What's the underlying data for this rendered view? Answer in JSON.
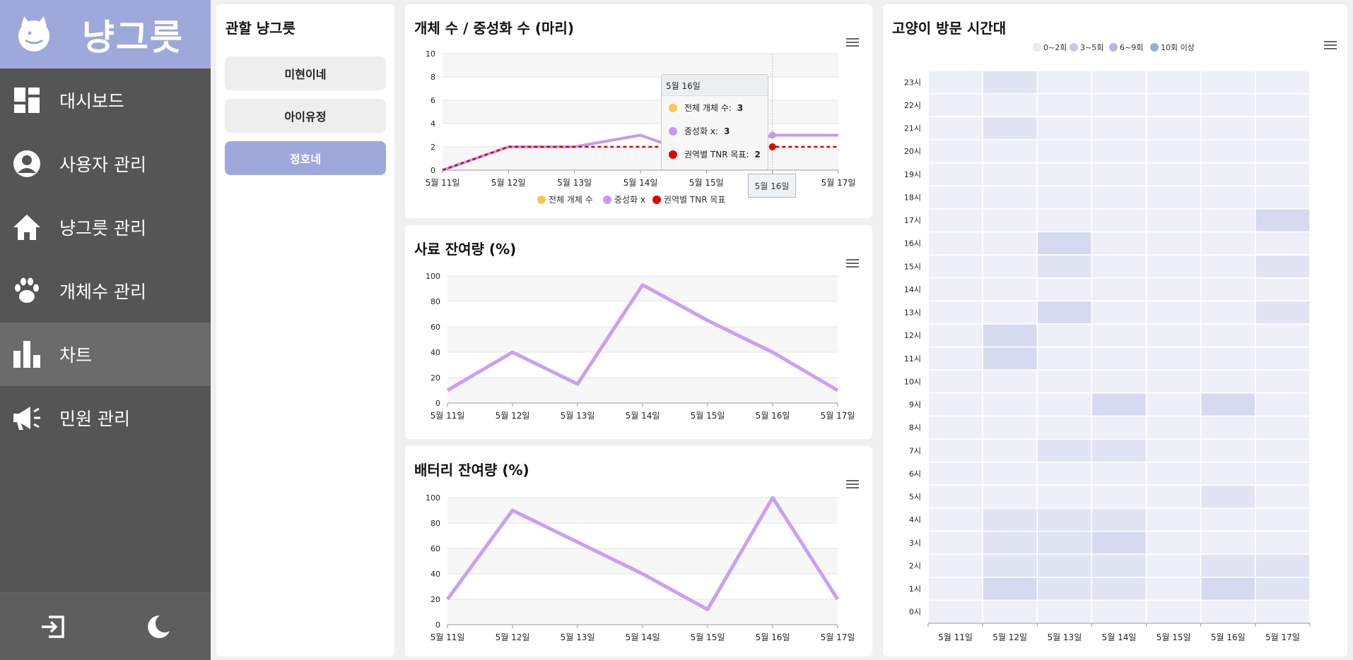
{
  "app": {
    "name": "냥그릇"
  },
  "sidebar": {
    "items": [
      {
        "label": "대시보드",
        "icon": "dashboard-icon"
      },
      {
        "label": "사용자 관리",
        "icon": "user-icon"
      },
      {
        "label": "냥그릇 관리",
        "icon": "home-icon"
      },
      {
        "label": "개체수 관리",
        "icon": "paw-icon"
      },
      {
        "label": "차트",
        "icon": "bar-chart-icon"
      },
      {
        "label": "민원 관리",
        "icon": "megaphone-icon"
      }
    ],
    "active_index": 4,
    "bottom": {
      "logout_icon": "logout-icon",
      "theme_icon": "moon-icon"
    }
  },
  "groups_panel": {
    "title": "관할 냥그릇",
    "items": [
      "미현이네",
      "아이유정",
      "정호네"
    ],
    "active_index": 2
  },
  "colors": {
    "brand": "#9fa8da",
    "sidebar_bg": "#555555",
    "series_total": "#f9c74f",
    "series_neutered": "#c49af0",
    "series_tnr": "#e00000",
    "line_purple": "#c9a0f5"
  },
  "chart_data": [
    {
      "type": "line",
      "title": "개체 수 / 중성화 수 (마리)",
      "categories": [
        "5월 11일",
        "5월 12일",
        "5월 13일",
        "5월 14일",
        "5월 15일",
        "5월 16일",
        "5월 17일"
      ],
      "series": [
        {
          "name": "전체 개체 수",
          "values": [
            0,
            2,
            2,
            3,
            1,
            3,
            3
          ]
        },
        {
          "name": "중성화 x",
          "values": [
            0,
            2,
            2,
            3,
            1,
            3,
            3
          ]
        },
        {
          "name": "권역별 TNR 목표",
          "values": [
            0,
            2,
            2,
            2,
            2,
            2,
            2
          ]
        }
      ],
      "ylim": [
        0,
        10
      ],
      "yticks": [
        0,
        2,
        4,
        6,
        8,
        10
      ],
      "legend": "bottom",
      "tooltip": {
        "title": "5월 16일",
        "rows": [
          {
            "label": "전체 개체 수:",
            "value": "3"
          },
          {
            "label": "중성화 x:",
            "value": "3"
          },
          {
            "label": "권역별 TNR 목표:",
            "value": "2"
          }
        ]
      }
    },
    {
      "type": "line",
      "title": "사료 잔여량 (%)",
      "categories": [
        "5월 11일",
        "5월 12일",
        "5월 13일",
        "5월 14일",
        "5월 15일",
        "5월 16일",
        "5월 17일"
      ],
      "values": [
        10,
        40,
        15,
        93,
        65,
        40,
        10
      ],
      "ylim": [
        0,
        100
      ],
      "yticks": [
        0,
        20,
        40,
        60,
        80,
        100
      ]
    },
    {
      "type": "line",
      "title": "배터리 잔여량 (%)",
      "categories": [
        "5월 11일",
        "5월 12일",
        "5월 13일",
        "5월 14일",
        "5월 15일",
        "5월 16일",
        "5월 17일"
      ],
      "values": [
        20,
        90,
        65,
        40,
        12,
        100,
        20
      ],
      "ylim": [
        0,
        100
      ],
      "yticks": [
        0,
        20,
        40,
        60,
        80,
        100
      ]
    },
    {
      "type": "heatmap",
      "title": "고양이 방문 시간대",
      "x": [
        "5월 11일",
        "5월 12일",
        "5월 13일",
        "5월 14일",
        "5월 15일",
        "5월 16일",
        "5월 17일"
      ],
      "y": [
        "0시",
        "1시",
        "2시",
        "3시",
        "4시",
        "5시",
        "6시",
        "7시",
        "8시",
        "9시",
        "10시",
        "11시",
        "12시",
        "13시",
        "14시",
        "15시",
        "16시",
        "17시",
        "18시",
        "19시",
        "20시",
        "21시",
        "22시",
        "23시"
      ],
      "legend": [
        "0~2회",
        "3~5회",
        "6~9회",
        "10회 이상"
      ],
      "legend_colors": [
        "#e8eaf6",
        "#c5cae9",
        "#b3b9e0",
        "#9fa8da"
      ],
      "levels": [
        [
          0,
          0,
          0,
          0,
          0,
          0,
          0
        ],
        [
          0,
          2,
          1,
          1,
          0,
          2,
          1
        ],
        [
          0,
          1,
          1,
          1,
          0,
          1,
          1
        ],
        [
          0,
          1,
          1,
          2,
          0,
          0,
          0
        ],
        [
          0,
          1,
          1,
          1,
          0,
          0,
          0
        ],
        [
          0,
          0,
          0,
          0,
          0,
          1,
          0
        ],
        [
          0,
          0,
          0,
          0,
          0,
          0,
          0
        ],
        [
          0,
          0,
          1,
          1,
          0,
          0,
          0
        ],
        [
          0,
          0,
          0,
          0,
          0,
          0,
          0
        ],
        [
          0,
          0,
          0,
          2,
          0,
          2,
          0
        ],
        [
          0,
          0,
          0,
          0,
          0,
          0,
          0
        ],
        [
          0,
          2,
          0,
          0,
          0,
          0,
          0
        ],
        [
          0,
          2,
          0,
          0,
          0,
          0,
          0
        ],
        [
          0,
          0,
          2,
          0,
          0,
          0,
          1
        ],
        [
          0,
          0,
          0,
          0,
          0,
          0,
          0
        ],
        [
          0,
          0,
          1,
          0,
          0,
          0,
          1
        ],
        [
          0,
          0,
          2,
          0,
          0,
          0,
          0
        ],
        [
          0,
          0,
          0,
          0,
          0,
          0,
          2
        ],
        [
          0,
          0,
          0,
          0,
          0,
          0,
          0
        ],
        [
          0,
          0,
          0,
          0,
          0,
          0,
          0
        ],
        [
          0,
          0,
          0,
          0,
          0,
          0,
          0
        ],
        [
          0,
          1,
          0,
          0,
          0,
          0,
          0
        ],
        [
          0,
          0,
          0,
          0,
          0,
          0,
          0
        ],
        [
          0,
          1,
          0,
          0,
          0,
          0,
          0
        ]
      ]
    }
  ]
}
